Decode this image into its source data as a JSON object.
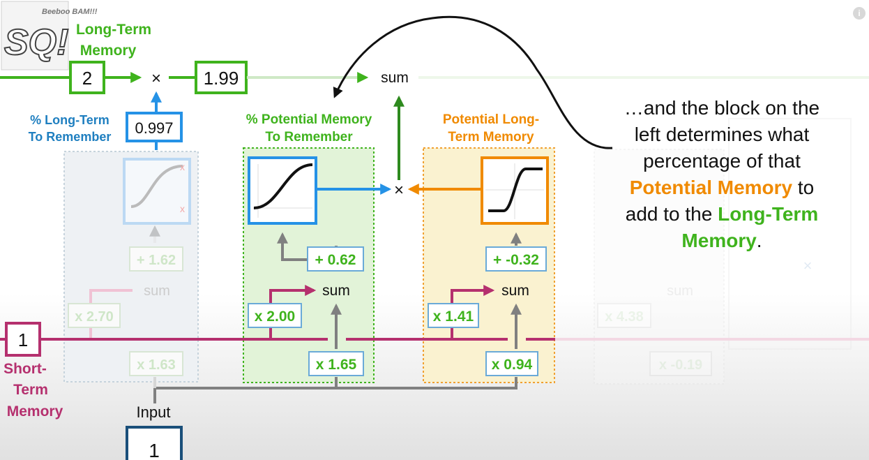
{
  "logo": {
    "text_top": "Beeboo BAM!!!",
    "text_main": "SQ!"
  },
  "long_term": {
    "label_line1": "Long-Term",
    "label_line2": "Memory",
    "input_value": "2",
    "output_value": "1.99",
    "sum_label": "sum",
    "multiply_symbol": "×",
    "color": "#3fb31d"
  },
  "forget_gate": {
    "label_line1": "% Long-Term",
    "label_line2": "To Remember",
    "output_value": "0.997",
    "bias": "+ 1.62",
    "stm_weight": "x 2.70",
    "input_weight": "x 1.63",
    "sum_label": "sum",
    "color": "#1f7fc0"
  },
  "input_gate": {
    "label_line1": "% Potential Memory",
    "label_line2": "To Remember",
    "bias": "+ 0.62",
    "stm_weight": "x 2.00",
    "input_weight": "x 1.65",
    "sum_label": "sum",
    "color": "#3fb31d"
  },
  "candidate_gate": {
    "label_line1": "Potential Long-",
    "label_line2": "Term Memory",
    "bias": "+ -0.32",
    "stm_weight": "x 1.41",
    "input_weight": "x 0.94",
    "sum_label": "sum",
    "multiply_symbol": "×",
    "color": "#f08a00"
  },
  "output_gate_faded": {
    "stm_weight": "x 4.38",
    "input_weight": "x -0.19",
    "sum_label": "sum",
    "multiply_symbol": "×"
  },
  "short_term": {
    "value": "1",
    "label_line1": "Short-",
    "label_line2": "Term",
    "label_line3": "Memory",
    "color": "#b5306e"
  },
  "input": {
    "label": "Input",
    "value": "1",
    "color": "#1a4f7a"
  },
  "explanation": {
    "part1": "…and the block on the left determines what percentage of that ",
    "highlight1": "Potential Memory",
    "part2": " to add to the ",
    "highlight2": "Long-Term Memory",
    "part3": "."
  },
  "info_icon": "i"
}
